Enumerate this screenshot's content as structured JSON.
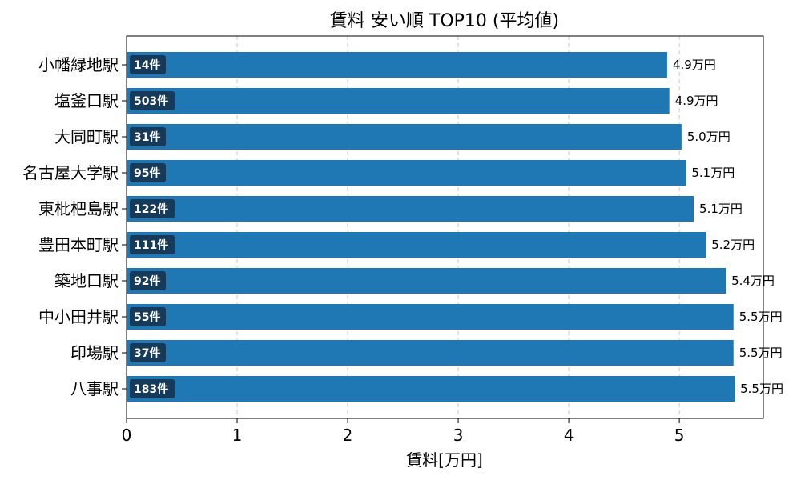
{
  "chart_data": {
    "type": "bar",
    "orientation": "horizontal",
    "title": "賃料 安い順 TOP10 (平均値)",
    "xlabel": "賃料[万円]",
    "ylabel": "",
    "xlim": [
      0,
      5.76
    ],
    "xticks": [
      "0",
      "1",
      "2",
      "3",
      "4",
      "5"
    ],
    "grid": "x-dashed",
    "categories": [
      "小幡緑地駅",
      "塩釜口駅",
      "大同町駅",
      "名古屋大学駅",
      "東枇杷島駅",
      "豊田本町駅",
      "築地口駅",
      "中小田井駅",
      "印場駅",
      "八事駅"
    ],
    "values": [
      4.89,
      4.91,
      5.02,
      5.06,
      5.13,
      5.24,
      5.42,
      5.49,
      5.49,
      5.5
    ],
    "value_labels": [
      "4.9万円",
      "4.9万円",
      "5.0万円",
      "5.1万円",
      "5.1万円",
      "5.2万円",
      "5.4万円",
      "5.5万円",
      "5.5万円",
      "5.5万円"
    ],
    "count_labels": [
      "14件",
      "503件",
      "31件",
      "95件",
      "122件",
      "111件",
      "92件",
      "55件",
      "37件",
      "183件"
    ],
    "colors": {
      "bar": "#1f77b4",
      "count_badge": "#163a5a"
    }
  }
}
